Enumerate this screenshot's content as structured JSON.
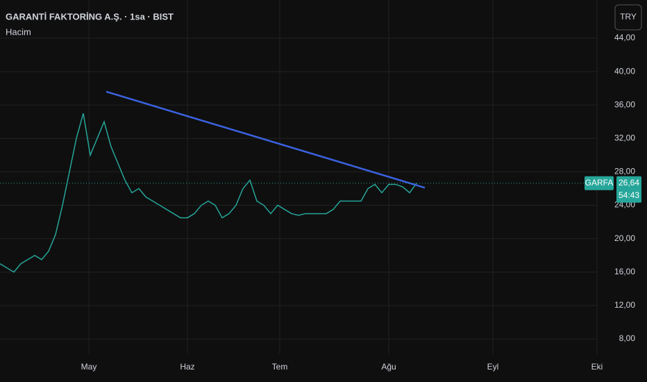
{
  "chart_data": {
    "type": "line",
    "title": "GARANTİ FAKTORİNG A.Ş. · 1sa · BIST",
    "subtitle": "Hacim",
    "currency_button": "TRY",
    "symbol": "GARFA",
    "countdown": "54:43",
    "x": [
      0,
      1,
      2,
      3,
      4,
      5,
      6,
      7,
      8,
      9,
      10,
      11,
      12,
      13,
      14,
      15,
      16,
      17,
      18,
      19,
      20,
      21,
      22,
      23,
      24,
      25,
      26,
      27,
      28,
      29,
      30,
      31,
      32,
      33,
      34,
      35,
      36,
      37,
      38,
      39,
      40,
      41,
      42,
      43,
      44,
      45,
      46,
      47,
      48,
      49,
      50,
      51,
      52,
      53,
      54,
      55,
      56,
      57,
      58,
      59,
      60
    ],
    "series": [
      {
        "name": "GARFA",
        "color": "#26a69a",
        "values": [
          17,
          16.5,
          16,
          17,
          17.5,
          18,
          17.5,
          18.5,
          20.5,
          24,
          28,
          32,
          35,
          30,
          32,
          34,
          31,
          29,
          27,
          25.5,
          26,
          25,
          24.5,
          24,
          23.5,
          23,
          22.5,
          22.5,
          23,
          24,
          24.5,
          24,
          22.5,
          23,
          24,
          26,
          27,
          24.5,
          24,
          23,
          24,
          23.5,
          23,
          22.8,
          23,
          23,
          23,
          23,
          23.5,
          24.5,
          24.5,
          24.5,
          24.5,
          26,
          26.5,
          25.5,
          26.5,
          26.5,
          26.2,
          25.5,
          26.64
        ]
      }
    ],
    "last_price": {
      "value": 26.64,
      "label": "26,64"
    },
    "trendline": {
      "x": [
        15.3,
        61.2
      ],
      "y": [
        37.6,
        26.1
      ],
      "color": "#3b63e0"
    },
    "xlim": [
      0,
      93.2
    ],
    "xticks": [
      {
        "value": 12.8,
        "label": "May"
      },
      {
        "value": 27,
        "label": "Haz"
      },
      {
        "value": 40.3,
        "label": "Tem"
      },
      {
        "value": 56,
        "label": "Ağu"
      },
      {
        "value": 71,
        "label": "Eyl"
      },
      {
        "value": 86,
        "label": "Eki"
      }
    ],
    "ylim": [
      6.17,
      48.57
    ],
    "yticks": [
      {
        "value": 8,
        "label": "8,00"
      },
      {
        "value": 12,
        "label": "12,00"
      },
      {
        "value": 16,
        "label": "16,00"
      },
      {
        "value": 20,
        "label": "20,00"
      },
      {
        "value": 24,
        "label": "24,00"
      },
      {
        "value": 28,
        "label": "28,00"
      },
      {
        "value": 32,
        "label": "32,00"
      },
      {
        "value": 36,
        "label": "36,00"
      },
      {
        "value": 40,
        "label": "40,00"
      },
      {
        "value": 44,
        "label": "44,00"
      }
    ],
    "grid": true
  }
}
